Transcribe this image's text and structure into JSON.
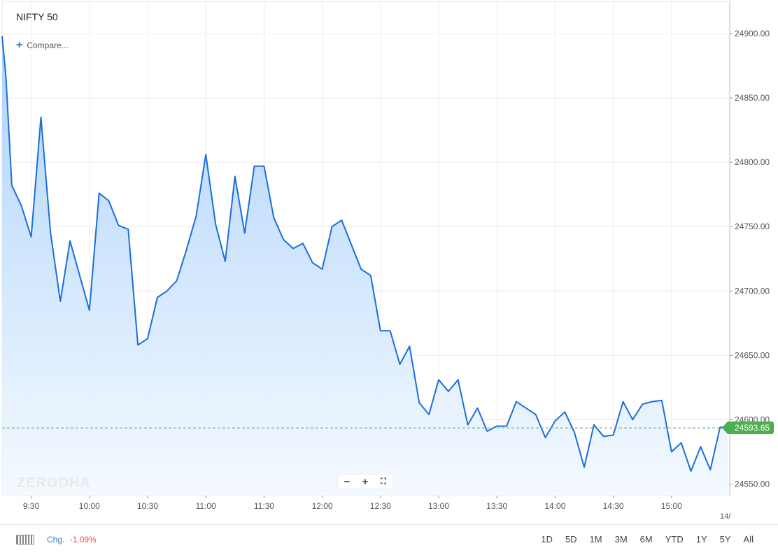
{
  "header": {
    "symbol": "NIFTY 50",
    "compare_label": "Compare..."
  },
  "watermark": "ZERODHA",
  "footer": {
    "chg_label": "Chg.",
    "chg_value": "-1.09%",
    "ranges": [
      "1D",
      "5D",
      "1M",
      "3M",
      "6M",
      "YTD",
      "1Y",
      "5Y",
      "All"
    ]
  },
  "colors": {
    "line": "#1a6fd9",
    "fill_top": "#a9d0fb",
    "fill_bottom": "#f3f9ff",
    "last_price_tag": "#4caf50",
    "negative": "#df514c",
    "accent": "#387ed1"
  },
  "chart_data": {
    "type": "area",
    "title": "NIFTY 50",
    "y_axis_side": "right",
    "ylim": [
      24541,
      24925
    ],
    "xlim": [
      "9:15",
      "15:30"
    ],
    "y_ticks": [
      {
        "value": 24900,
        "label": "24900.00"
      },
      {
        "value": 24850,
        "label": "24850.00"
      },
      {
        "value": 24800,
        "label": "24800.00"
      },
      {
        "value": 24750,
        "label": "24750.00"
      },
      {
        "value": 24700,
        "label": "24700.00"
      },
      {
        "value": 24650,
        "label": "24650.00"
      },
      {
        "value": 24600,
        "label": "24600.00"
      },
      {
        "value": 24550,
        "label": "24550.00"
      }
    ],
    "x_ticks": [
      "9:30",
      "10:00",
      "10:30",
      "11:00",
      "11:30",
      "12:00",
      "12:30",
      "13:00",
      "13:30",
      "14:00",
      "14:30",
      "15:00"
    ],
    "x_tick_minutes": [
      570,
      600,
      630,
      660,
      690,
      720,
      750,
      780,
      810,
      840,
      870,
      900
    ],
    "x_edge_label": "14/",
    "last_price": 24593.65,
    "last_price_label": "24593.65",
    "grid": true,
    "series": [
      {
        "x": [
          "9:15",
          "9:17",
          "9:20",
          "9:25",
          "9:30",
          "9:35",
          "9:40",
          "9:45",
          "9:50",
          "9:55",
          "10:00",
          "10:05",
          "10:10",
          "10:15",
          "10:20",
          "10:25",
          "10:30",
          "10:35",
          "10:40",
          "10:45",
          "10:50",
          "10:55",
          "11:00",
          "11:05",
          "11:10",
          "11:15",
          "11:20",
          "11:25",
          "11:30",
          "11:35",
          "11:40",
          "11:45",
          "11:50",
          "11:55",
          "12:00",
          "12:05",
          "12:10",
          "12:15",
          "12:20",
          "12:25",
          "12:30",
          "12:35",
          "12:40",
          "12:45",
          "12:50",
          "12:55",
          "13:00",
          "13:05",
          "13:10",
          "13:15",
          "13:20",
          "13:25",
          "13:30",
          "13:35",
          "13:40",
          "13:45",
          "13:50",
          "13:55",
          "14:00",
          "14:05",
          "14:10",
          "14:15",
          "14:20",
          "14:25",
          "14:30",
          "14:35",
          "14:40",
          "14:45",
          "14:50",
          "14:55",
          "15:00",
          "15:05",
          "15:10",
          "15:15",
          "15:20",
          "15:25",
          "15:29"
        ],
        "y": [
          24898,
          24866,
          24782,
          24766,
          24742,
          24835,
          24745,
          24692,
          24739,
          24712,
          24685,
          24776,
          24770,
          24751,
          24748,
          24658,
          24663,
          24695,
          24700,
          24708,
          24732,
          24758,
          24806,
          24752,
          24723,
          24789,
          24745,
          24797,
          24797,
          24757,
          24740,
          24733,
          24737,
          24722,
          24717,
          24750,
          24755,
          24736,
          24717,
          24712,
          24669,
          24669,
          24643,
          24657,
          24613,
          24604,
          24631,
          24622,
          24631,
          24596,
          24609,
          24591,
          24595,
          24595,
          24614,
          24609,
          24604,
          24586,
          24599,
          24606,
          24590,
          24563,
          24596,
          24587,
          24588,
          24614,
          24600,
          24612,
          24614,
          24615,
          24575,
          24582,
          24560,
          24579,
          24561,
          24594,
          24594
        ]
      }
    ]
  }
}
